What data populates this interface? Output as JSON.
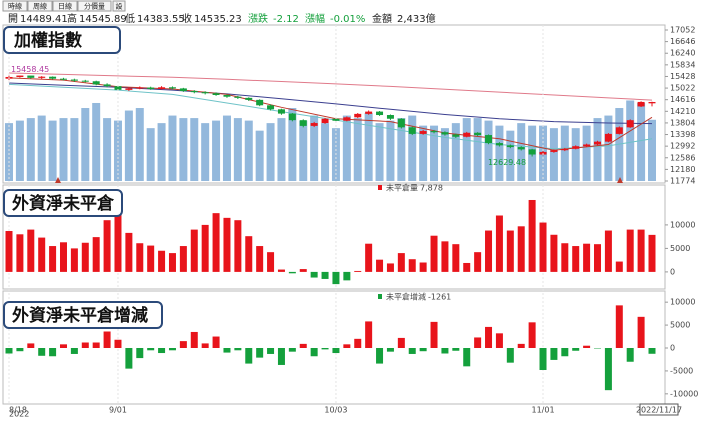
{
  "toolbar": [
    "時線",
    "周線",
    "日線",
    "分價量",
    "設"
  ],
  "info": {
    "open_label": "開",
    "high_label": "高",
    "low_label": "低",
    "close_label": "收",
    "change_label": "漲跌",
    "change": "-2.12",
    "pct_label": "漲幅",
    "pct": "-0.01%",
    "amount_label": "金額",
    "amount": "2,433億"
  },
  "chart_data": [
    {
      "type": "candlestick",
      "title": "加權指數",
      "categories": [
        "8/18",
        null,
        null,
        null,
        null,
        null,
        null,
        null,
        null,
        null,
        "9/01",
        null,
        null,
        null,
        null,
        null,
        null,
        null,
        null,
        null,
        null,
        null,
        null,
        null,
        null,
        null,
        null,
        null,
        null,
        null,
        "10/03",
        null,
        null,
        null,
        null,
        null,
        null,
        null,
        null,
        null,
        null,
        null,
        null,
        null,
        null,
        null,
        null,
        null,
        null,
        "11/01",
        null,
        null,
        null,
        null,
        null,
        null,
        null,
        null,
        null,
        "2022/11/17"
      ],
      "year_label": "2022",
      "open": [
        15350,
        15410,
        15460,
        15380,
        15420,
        15350,
        15320,
        15280,
        15260,
        15150,
        15090,
        14960,
        15010,
        15040,
        14990,
        15050,
        15010,
        14920,
        14880,
        14840,
        14780,
        14720,
        14680,
        14610,
        14420,
        14280,
        14130,
        13900,
        13700,
        13800,
        13950,
        13880,
        14000,
        14120,
        14200,
        14080,
        13950,
        13650,
        13420,
        13520,
        13480,
        13400,
        13320,
        13460,
        13380,
        13100,
        13020,
        12960,
        12880,
        12700,
        12790,
        12850,
        12900,
        12990,
        13050,
        13150,
        13420,
        13650,
        14380,
        14489.41
      ],
      "high": [
        15458.45,
        15455,
        15450,
        15440,
        15430,
        15380,
        15350,
        15310,
        15280,
        15190,
        15110,
        15040,
        15080,
        15070,
        15090,
        15080,
        15030,
        14950,
        14910,
        14870,
        14800,
        14750,
        14700,
        14630,
        14450,
        14300,
        14150,
        13930,
        13840,
        13980,
        13990,
        14030,
        14150,
        14240,
        14220,
        14100,
        13970,
        13680,
        13560,
        13560,
        13510,
        13430,
        13490,
        13480,
        13400,
        13130,
        13050,
        12990,
        12900,
        12830,
        12880,
        12930,
        13020,
        13080,
        13180,
        13450,
        13680,
        13930,
        14560,
        14545.89
      ],
      "low": [
        15300,
        15390,
        15350,
        15340,
        15320,
        15290,
        15240,
        15220,
        15120,
        15050,
        14930,
        14920,
        14980,
        14960,
        14970,
        14980,
        14890,
        14840,
        14800,
        14750,
        14680,
        14640,
        14570,
        14390,
        14240,
        14090,
        13860,
        13650,
        13660,
        13770,
        13850,
        13860,
        13970,
        14090,
        14050,
        13910,
        13610,
        13380,
        13390,
        13440,
        13360,
        13280,
        13300,
        13340,
        13060,
        12980,
        12920,
        12840,
        12629.48,
        12670,
        12760,
        12820,
        12880,
        12960,
        13020,
        13130,
        13400,
        13630,
        14360,
        14383.55
      ],
      "close": [
        15410,
        15460,
        15380,
        15420,
        15350,
        15320,
        15280,
        15260,
        15150,
        15090,
        14960,
        15010,
        15040,
        14990,
        15050,
        15010,
        14920,
        14880,
        14840,
        14780,
        14720,
        14680,
        14610,
        14420,
        14280,
        14130,
        13900,
        13700,
        13800,
        13950,
        13880,
        14000,
        14120,
        14200,
        14080,
        13950,
        13650,
        13420,
        13520,
        13480,
        13400,
        13320,
        13460,
        13380,
        13100,
        13020,
        12960,
        12880,
        12700,
        12790,
        12850,
        12900,
        12990,
        13050,
        13150,
        13420,
        13650,
        13900,
        14537.35,
        14535.23
      ],
      "up_color": "#e8141b",
      "down_color": "#14a03c",
      "volume": [
        2300,
        2400,
        2500,
        2600,
        2400,
        2500,
        2500,
        2900,
        3100,
        2500,
        2400,
        2800,
        2900,
        2100,
        2300,
        2600,
        2500,
        2500,
        2300,
        2400,
        2600,
        2500,
        2400,
        2000,
        2300,
        2500,
        2900,
        2400,
        2600,
        2300,
        2100,
        2600,
        2500,
        2700,
        2300,
        2400,
        2500,
        2600,
        2200,
        2200,
        2100,
        2300,
        2500,
        2500,
        2400,
        2200,
        2000,
        2300,
        2200,
        2200,
        2100,
        2200,
        2100,
        2200,
        2500,
        2600,
        2900,
        3200,
        3100,
        2433
      ],
      "volume_color": "#93b8dc",
      "vlim": [
        0,
        6000
      ],
      "ma_x": [
        0,
        5,
        10,
        15,
        20,
        25,
        30,
        35,
        40,
        45,
        50,
        55,
        59
      ],
      "ma": [
        {
          "color": "#e07a8a",
          "values": [
            15550,
            15500,
            15450,
            15400,
            15330,
            15250,
            15170,
            15080,
            14980,
            14880,
            14780,
            14680,
            14600
          ]
        },
        {
          "color": "#3b3f8f",
          "values": [
            15200,
            15120,
            15050,
            14950,
            14820,
            14650,
            14470,
            14280,
            14100,
            13950,
            13850,
            13800,
            13780
          ]
        },
        {
          "color": "#6fc3c8",
          "values": [
            15150,
            15050,
            14950,
            14800,
            14500,
            14200,
            13900,
            13600,
            13300,
            13050,
            12900,
            13000,
            13250
          ]
        },
        {
          "color": "#c0392b",
          "values": [
            15380,
            15300,
            15070,
            14990,
            14800,
            14350,
            13950,
            13850,
            13450,
            13250,
            12850,
            13050,
            14000
          ]
        }
      ],
      "ylim": [
        11774,
        17052
      ],
      "yticks": [
        11774,
        12180,
        12586,
        12992,
        13398,
        13804,
        14210,
        14616,
        15022,
        15428,
        15834,
        16240,
        16646,
        17052
      ]
    },
    {
      "type": "bar",
      "title": "外資淨未平倉",
      "legend": "未平倉量",
      "legend_value": "7,878",
      "values": [
        8700,
        8000,
        9000,
        7300,
        5500,
        6300,
        5000,
        6200,
        7400,
        11000,
        12800,
        8300,
        6100,
        5600,
        4500,
        4000,
        5500,
        9000,
        10000,
        12500,
        11500,
        11000,
        7600,
        5500,
        4200,
        500,
        -300,
        600,
        -1200,
        -1500,
        -2600,
        -1800,
        200,
        6000,
        2600,
        1800,
        4000,
        2700,
        2000,
        7700,
        6500,
        5900,
        1900,
        4200,
        8800,
        12000,
        8800,
        9700,
        15300,
        10500,
        7900,
        6100,
        5500,
        6000,
        5900,
        8800,
        2200,
        9000,
        9000,
        7878
      ],
      "pos_color": "#e8141b",
      "neg_color": "#14a03c",
      "ylim": [
        -3000,
        17000
      ],
      "yticks": [
        0,
        5000,
        10000
      ]
    },
    {
      "type": "bar",
      "title": "外資淨未平倉增減",
      "legend": "未平倉增減",
      "values": [
        -1200,
        -700,
        1000,
        -1700,
        -1800,
        800,
        -1300,
        1200,
        1200,
        3600,
        1800,
        -4500,
        -2200,
        -500,
        -1100,
        -500,
        1500,
        3500,
        1000,
        2500,
        -1000,
        -500,
        -3400,
        -2100,
        -1300,
        -3700,
        -800,
        900,
        -1800,
        -300,
        -1100,
        800,
        2000,
        5800,
        -3400,
        -800,
        2200,
        -1300,
        -700,
        5700,
        -1200,
        -600,
        -4000,
        2300,
        4600,
        3200,
        -3200,
        900,
        5600,
        -4800,
        -2600,
        -1800,
        -600,
        500,
        -100,
        -9200,
        9300,
        -3000,
        6800,
        -1261
      ],
      "pos_color": "#e8141b",
      "neg_color": "#14a03c",
      "ylim": [
        -12000,
        12000
      ],
      "yticks": [
        -10000,
        -5000,
        0,
        5000,
        10000
      ]
    }
  ]
}
